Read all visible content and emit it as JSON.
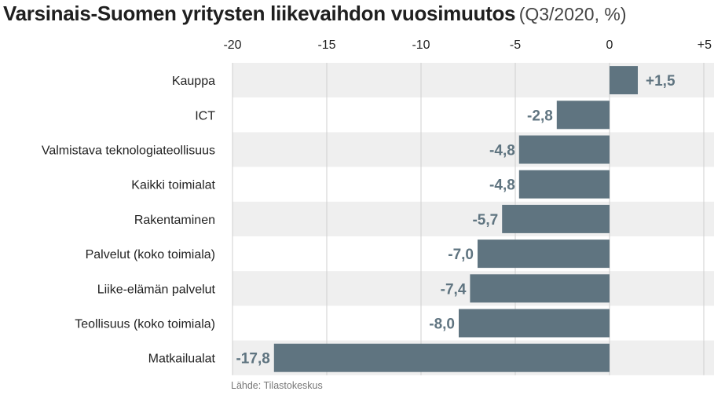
{
  "title": {
    "main": "Varsinais-Suomen yritysten liikevaihdon vuosimuutos",
    "sub": "(Q3/2020, %)"
  },
  "source": "Lähde: Tilastokeskus",
  "colors": {
    "bar": "#5f7480",
    "band": "#efefef",
    "grid": "#cfcfcf",
    "label_negative": "#5f7480"
  },
  "chart_data": {
    "type": "bar",
    "orientation": "horizontal",
    "title": "Varsinais-Suomen yritysten liikevaihdon vuosimuutos (Q3/2020, %)",
    "xlabel": "",
    "ylabel": "",
    "xlim": [
      -20,
      5
    ],
    "ticks": [
      -20,
      -15,
      -10,
      -5,
      0,
      5
    ],
    "tick_labels": [
      "-20",
      "-15",
      "-10",
      "-5",
      "0",
      "+5"
    ],
    "categories": [
      "Kauppa",
      "ICT",
      "Valmistava teknologiateollisuus",
      "Kaikki toimialat",
      "Rakentaminen",
      "Palvelut (koko toimiala)",
      "Liike-elämän palvelut",
      "Teollisuus (koko toimiala)",
      "Matkailualat"
    ],
    "values": [
      1.5,
      -2.8,
      -4.8,
      -4.8,
      -5.7,
      -7.0,
      -7.4,
      -8.0,
      -17.8
    ],
    "value_labels": [
      "+1,5",
      "-2,8",
      "-4,8",
      "-4,8",
      "-5,7",
      "-7,0",
      "-7,4",
      "-8,0",
      "-17,8"
    ]
  }
}
